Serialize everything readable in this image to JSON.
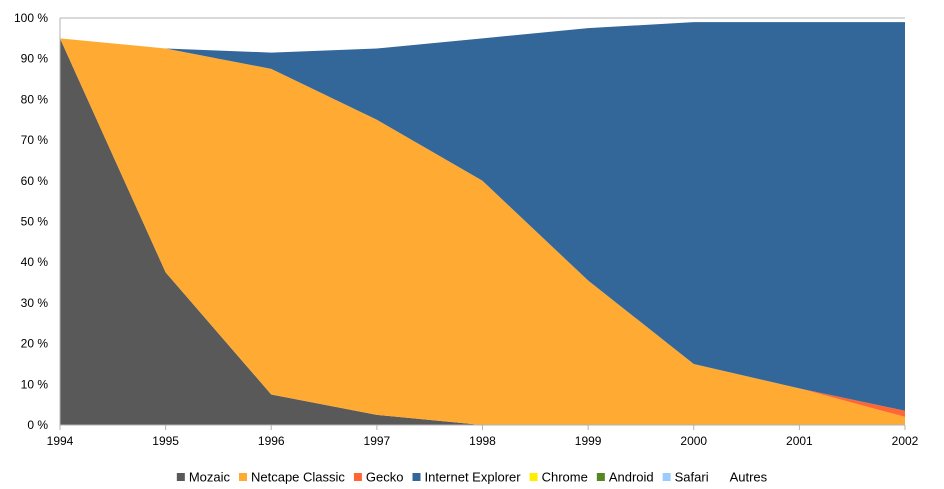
{
  "chart_data": {
    "type": "area",
    "stacked": true,
    "normalized_percent": true,
    "x": [
      "1994",
      "1995",
      "1996",
      "1997",
      "1998",
      "1999",
      "2000",
      "2001",
      "2002"
    ],
    "ylim": [
      0,
      100
    ],
    "y_ticks": [
      "0 %",
      "10 %",
      "20 %",
      "30 %",
      "40 %",
      "50 %",
      "60 %",
      "70 %",
      "80 %",
      "90 %",
      "100 %"
    ],
    "grid": "horizontal",
    "legend_position": "bottom",
    "series": [
      {
        "name": "Mozaic",
        "color": "#595959",
        "values": [
          95,
          37.5,
          7.5,
          2.5,
          0,
          0,
          0,
          0,
          0
        ]
      },
      {
        "name": "Netcape Classic",
        "color": "#ffaa33",
        "values": [
          0,
          55,
          80,
          72.5,
          60,
          35.5,
          15,
          9,
          2
        ]
      },
      {
        "name": "Gecko",
        "color": "#ff6633",
        "values": [
          0,
          0,
          0,
          0,
          0,
          0,
          0,
          0,
          1.5
        ]
      },
      {
        "name": "Internet Explorer",
        "color": "#336699",
        "values": [
          0,
          0,
          4,
          17.5,
          35,
          62,
          84,
          90,
          95.5
        ]
      },
      {
        "name": "Chrome",
        "color": "#ffee00",
        "values": [
          0,
          0,
          0,
          0,
          0,
          0,
          0,
          0,
          0
        ]
      },
      {
        "name": "Android",
        "color": "#558822",
        "values": [
          0,
          0,
          0,
          0,
          0,
          0,
          0,
          0,
          0
        ]
      },
      {
        "name": "Safari",
        "color": "#99ccff",
        "values": [
          0,
          0,
          0,
          0,
          0,
          0,
          0,
          0,
          0
        ]
      },
      {
        "name": "Autres",
        "color": "#ffffff",
        "values": [
          0,
          0,
          0,
          0,
          0,
          0,
          0,
          0,
          0
        ]
      }
    ]
  }
}
